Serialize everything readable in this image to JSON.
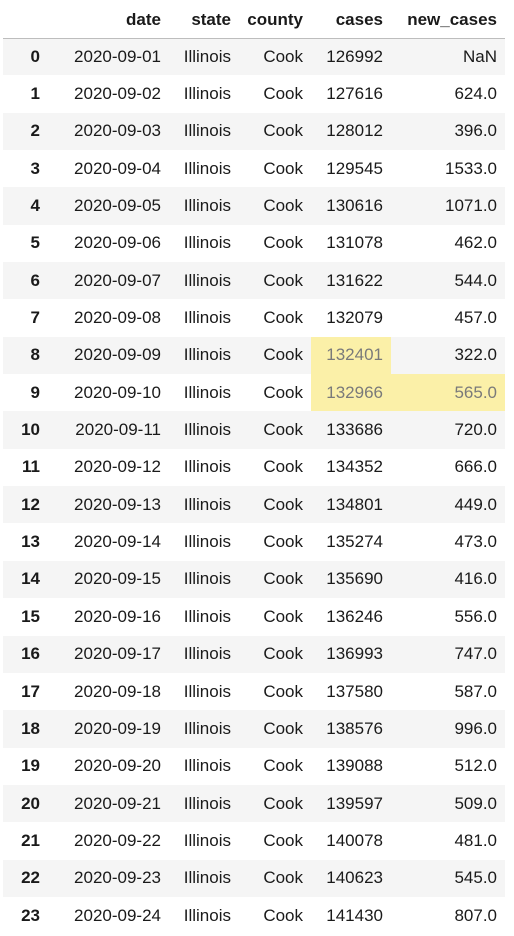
{
  "columns": [
    "",
    "date",
    "state",
    "county",
    "cases",
    "new_cases"
  ],
  "rows": [
    {
      "idx": "0",
      "date": "2020-09-01",
      "state": "Illinois",
      "county": "Cook",
      "cases": "126992",
      "new_cases": "NaN"
    },
    {
      "idx": "1",
      "date": "2020-09-02",
      "state": "Illinois",
      "county": "Cook",
      "cases": "127616",
      "new_cases": "624.0"
    },
    {
      "idx": "2",
      "date": "2020-09-03",
      "state": "Illinois",
      "county": "Cook",
      "cases": "128012",
      "new_cases": "396.0"
    },
    {
      "idx": "3",
      "date": "2020-09-04",
      "state": "Illinois",
      "county": "Cook",
      "cases": "129545",
      "new_cases": "1533.0"
    },
    {
      "idx": "4",
      "date": "2020-09-05",
      "state": "Illinois",
      "county": "Cook",
      "cases": "130616",
      "new_cases": "1071.0"
    },
    {
      "idx": "5",
      "date": "2020-09-06",
      "state": "Illinois",
      "county": "Cook",
      "cases": "131078",
      "new_cases": "462.0"
    },
    {
      "idx": "6",
      "date": "2020-09-07",
      "state": "Illinois",
      "county": "Cook",
      "cases": "131622",
      "new_cases": "544.0"
    },
    {
      "idx": "7",
      "date": "2020-09-08",
      "state": "Illinois",
      "county": "Cook",
      "cases": "132079",
      "new_cases": "457.0"
    },
    {
      "idx": "8",
      "date": "2020-09-09",
      "state": "Illinois",
      "county": "Cook",
      "cases": "132401",
      "new_cases": "322.0",
      "highlight": [
        "cases"
      ]
    },
    {
      "idx": "9",
      "date": "2020-09-10",
      "state": "Illinois",
      "county": "Cook",
      "cases": "132966",
      "new_cases": "565.0",
      "highlight": [
        "cases",
        "new_cases"
      ]
    },
    {
      "idx": "10",
      "date": "2020-09-11",
      "state": "Illinois",
      "county": "Cook",
      "cases": "133686",
      "new_cases": "720.0"
    },
    {
      "idx": "11",
      "date": "2020-09-12",
      "state": "Illinois",
      "county": "Cook",
      "cases": "134352",
      "new_cases": "666.0"
    },
    {
      "idx": "12",
      "date": "2020-09-13",
      "state": "Illinois",
      "county": "Cook",
      "cases": "134801",
      "new_cases": "449.0"
    },
    {
      "idx": "13",
      "date": "2020-09-14",
      "state": "Illinois",
      "county": "Cook",
      "cases": "135274",
      "new_cases": "473.0"
    },
    {
      "idx": "14",
      "date": "2020-09-15",
      "state": "Illinois",
      "county": "Cook",
      "cases": "135690",
      "new_cases": "416.0"
    },
    {
      "idx": "15",
      "date": "2020-09-16",
      "state": "Illinois",
      "county": "Cook",
      "cases": "136246",
      "new_cases": "556.0"
    },
    {
      "idx": "16",
      "date": "2020-09-17",
      "state": "Illinois",
      "county": "Cook",
      "cases": "136993",
      "new_cases": "747.0"
    },
    {
      "idx": "17",
      "date": "2020-09-18",
      "state": "Illinois",
      "county": "Cook",
      "cases": "137580",
      "new_cases": "587.0"
    },
    {
      "idx": "18",
      "date": "2020-09-19",
      "state": "Illinois",
      "county": "Cook",
      "cases": "138576",
      "new_cases": "996.0"
    },
    {
      "idx": "19",
      "date": "2020-09-20",
      "state": "Illinois",
      "county": "Cook",
      "cases": "139088",
      "new_cases": "512.0"
    },
    {
      "idx": "20",
      "date": "2020-09-21",
      "state": "Illinois",
      "county": "Cook",
      "cases": "139597",
      "new_cases": "509.0"
    },
    {
      "idx": "21",
      "date": "2020-09-22",
      "state": "Illinois",
      "county": "Cook",
      "cases": "140078",
      "new_cases": "481.0"
    },
    {
      "idx": "22",
      "date": "2020-09-23",
      "state": "Illinois",
      "county": "Cook",
      "cases": "140623",
      "new_cases": "545.0"
    },
    {
      "idx": "23",
      "date": "2020-09-24",
      "state": "Illinois",
      "county": "Cook",
      "cases": "141430",
      "new_cases": "807.0"
    }
  ],
  "colors": {
    "highlight": "#fbf0a8",
    "stripe": "#f5f5f5"
  }
}
